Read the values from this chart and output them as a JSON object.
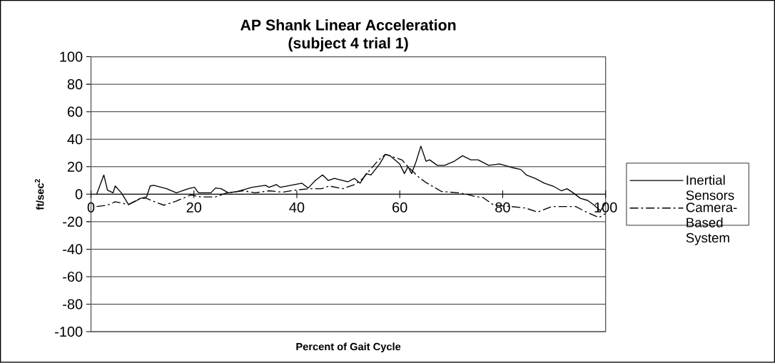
{
  "chart_data": {
    "type": "line",
    "title": "AP Shank Linear Acceleration\n(subject 4 trial 1)",
    "xlabel": "Percent of Gait Cycle",
    "ylabel": "ft/sec$^{2}$",
    "xlim": [
      0,
      100
    ],
    "xticks": [
      0,
      20,
      40,
      60,
      80,
      100
    ],
    "ylim": [
      -100,
      100
    ],
    "yticks": [
      -100,
      -80,
      -60,
      -40,
      -20,
      0,
      20,
      40,
      60,
      80,
      100
    ],
    "grid": "y",
    "legend": "right",
    "series": [
      {
        "name": "Inertial Sensors",
        "color": "#000000",
        "line_style": "solid",
        "x": [
          1.1,
          2.5,
          3.2,
          4.3,
          4.7,
          5.9,
          7.3,
          8.7,
          9.6,
          10.8,
          11.5,
          12.2,
          14.7,
          16.6,
          18.9,
          20.1,
          20.9,
          23.3,
          24.2,
          25.3,
          26.7,
          28.5,
          31.3,
          33.9,
          34.6,
          36,
          36.8,
          38.8,
          41,
          42.2,
          43.6,
          45,
          46.1,
          47.3,
          49.9,
          51.2,
          52.3,
          53.5,
          54.4,
          56.1,
          57.2,
          58.1,
          60,
          60.9,
          61.6,
          62.3,
          63.2,
          64.1,
          65.1,
          65.8,
          67.3,
          68.7,
          70.6,
          72.2,
          73.8,
          75.2,
          77.3,
          79.4,
          81.7,
          83.5,
          84.6,
          86.3,
          88.1,
          90,
          91.4,
          92.5,
          93.7,
          95.1,
          96.5,
          97.6,
          99,
          100
        ],
        "values": [
          0,
          14,
          3,
          1,
          6,
          1,
          -7.5,
          -5,
          -3,
          -2,
          6,
          6.5,
          4,
          1,
          4,
          5,
          1,
          1,
          4.5,
          4,
          1,
          2,
          5,
          6.5,
          5,
          7,
          5,
          6.5,
          8,
          4.5,
          10,
          14,
          10,
          11.5,
          9,
          11.5,
          8,
          15,
          14,
          22,
          29,
          28,
          22,
          15,
          20,
          15,
          24,
          35,
          24,
          25,
          21,
          21,
          24,
          28,
          25,
          25,
          21,
          22,
          19.5,
          18,
          14,
          11.5,
          8,
          5.5,
          2.5,
          4,
          1,
          -3,
          -4.5,
          -7.5,
          -12,
          -6.5
        ]
      },
      {
        "name": "Camera-Based System",
        "color": "#000000",
        "line_style": "dashdot",
        "x": [
          1.1,
          3.2,
          4.7,
          7.3,
          9.6,
          10.8,
          12.7,
          14.2,
          16.6,
          19.4,
          21.3,
          24.2,
          26.4,
          29.6,
          31.9,
          34.6,
          37.3,
          39.7,
          42.5,
          44.8,
          46.3,
          48.9,
          51.2,
          52.7,
          54.4,
          55.8,
          57.2,
          60.4,
          61.6,
          63.8,
          65.1,
          68.1,
          71.4,
          73,
          74.9,
          76,
          78.3,
          81.7,
          84.4,
          86.8,
          89.5,
          92.7,
          94.2,
          96,
          98.7,
          100
        ],
        "values": [
          -9,
          -8,
          -5.5,
          -7.5,
          -3,
          -3,
          -6,
          -8,
          -5,
          -0.5,
          -2,
          -2,
          1,
          2.5,
          1,
          2.5,
          1.5,
          3,
          4,
          4,
          6,
          4,
          7,
          11,
          18.5,
          24.5,
          29,
          25,
          20,
          12,
          8.5,
          2,
          1,
          0,
          -2,
          -2,
          -8,
          -9,
          -10,
          -13,
          -9,
          -9,
          -9,
          -12.5,
          -17,
          -14
        ]
      }
    ]
  }
}
